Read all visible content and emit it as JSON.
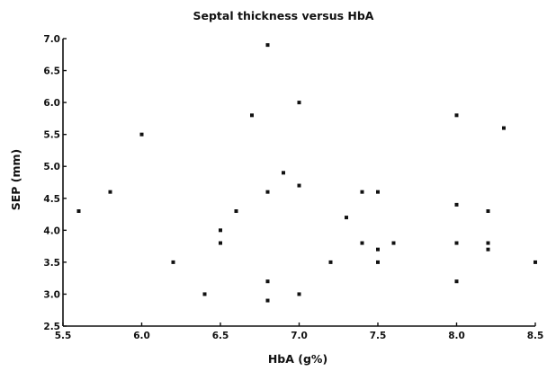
{
  "chart_data": {
    "type": "scatter",
    "title": "Septal thickness versus HbA",
    "xlabel": "HbA (g%)",
    "ylabel": "SEP (mm)",
    "xlim": [
      5.5,
      8.5
    ],
    "ylim": [
      2.5,
      7.0
    ],
    "x_ticks": [
      "5.5",
      "6.0",
      "6.5",
      "7.0",
      "7.5",
      "8.0",
      "8.5"
    ],
    "y_ticks": [
      "2.5",
      "3.0",
      "3.5",
      "4.0",
      "4.5",
      "5.0",
      "5.5",
      "6.0",
      "6.5",
      "7.0"
    ],
    "grid": false,
    "legend": "none",
    "marker_color": "#111111",
    "points": [
      {
        "x": 5.6,
        "y": 4.3
      },
      {
        "x": 5.8,
        "y": 4.6
      },
      {
        "x": 6.0,
        "y": 5.5
      },
      {
        "x": 6.2,
        "y": 3.5
      },
      {
        "x": 6.4,
        "y": 3.0
      },
      {
        "x": 6.5,
        "y": 4.0
      },
      {
        "x": 6.5,
        "y": 3.8
      },
      {
        "x": 6.6,
        "y": 4.3
      },
      {
        "x": 6.7,
        "y": 5.8
      },
      {
        "x": 6.8,
        "y": 6.9
      },
      {
        "x": 6.8,
        "y": 4.6
      },
      {
        "x": 6.8,
        "y": 3.2
      },
      {
        "x": 6.8,
        "y": 2.9
      },
      {
        "x": 6.9,
        "y": 4.9
      },
      {
        "x": 7.0,
        "y": 6.0
      },
      {
        "x": 7.0,
        "y": 4.7
      },
      {
        "x": 7.0,
        "y": 3.0
      },
      {
        "x": 7.2,
        "y": 3.5
      },
      {
        "x": 7.3,
        "y": 4.2
      },
      {
        "x": 7.4,
        "y": 4.6
      },
      {
        "x": 7.4,
        "y": 3.8
      },
      {
        "x": 7.5,
        "y": 4.6
      },
      {
        "x": 7.5,
        "y": 3.7
      },
      {
        "x": 7.5,
        "y": 3.5
      },
      {
        "x": 7.6,
        "y": 3.8
      },
      {
        "x": 8.0,
        "y": 5.8
      },
      {
        "x": 8.0,
        "y": 4.4
      },
      {
        "x": 8.0,
        "y": 3.8
      },
      {
        "x": 8.0,
        "y": 3.2
      },
      {
        "x": 8.2,
        "y": 4.3
      },
      {
        "x": 8.2,
        "y": 3.8
      },
      {
        "x": 8.2,
        "y": 3.7
      },
      {
        "x": 8.3,
        "y": 5.6
      },
      {
        "x": 8.5,
        "y": 3.5
      }
    ]
  }
}
